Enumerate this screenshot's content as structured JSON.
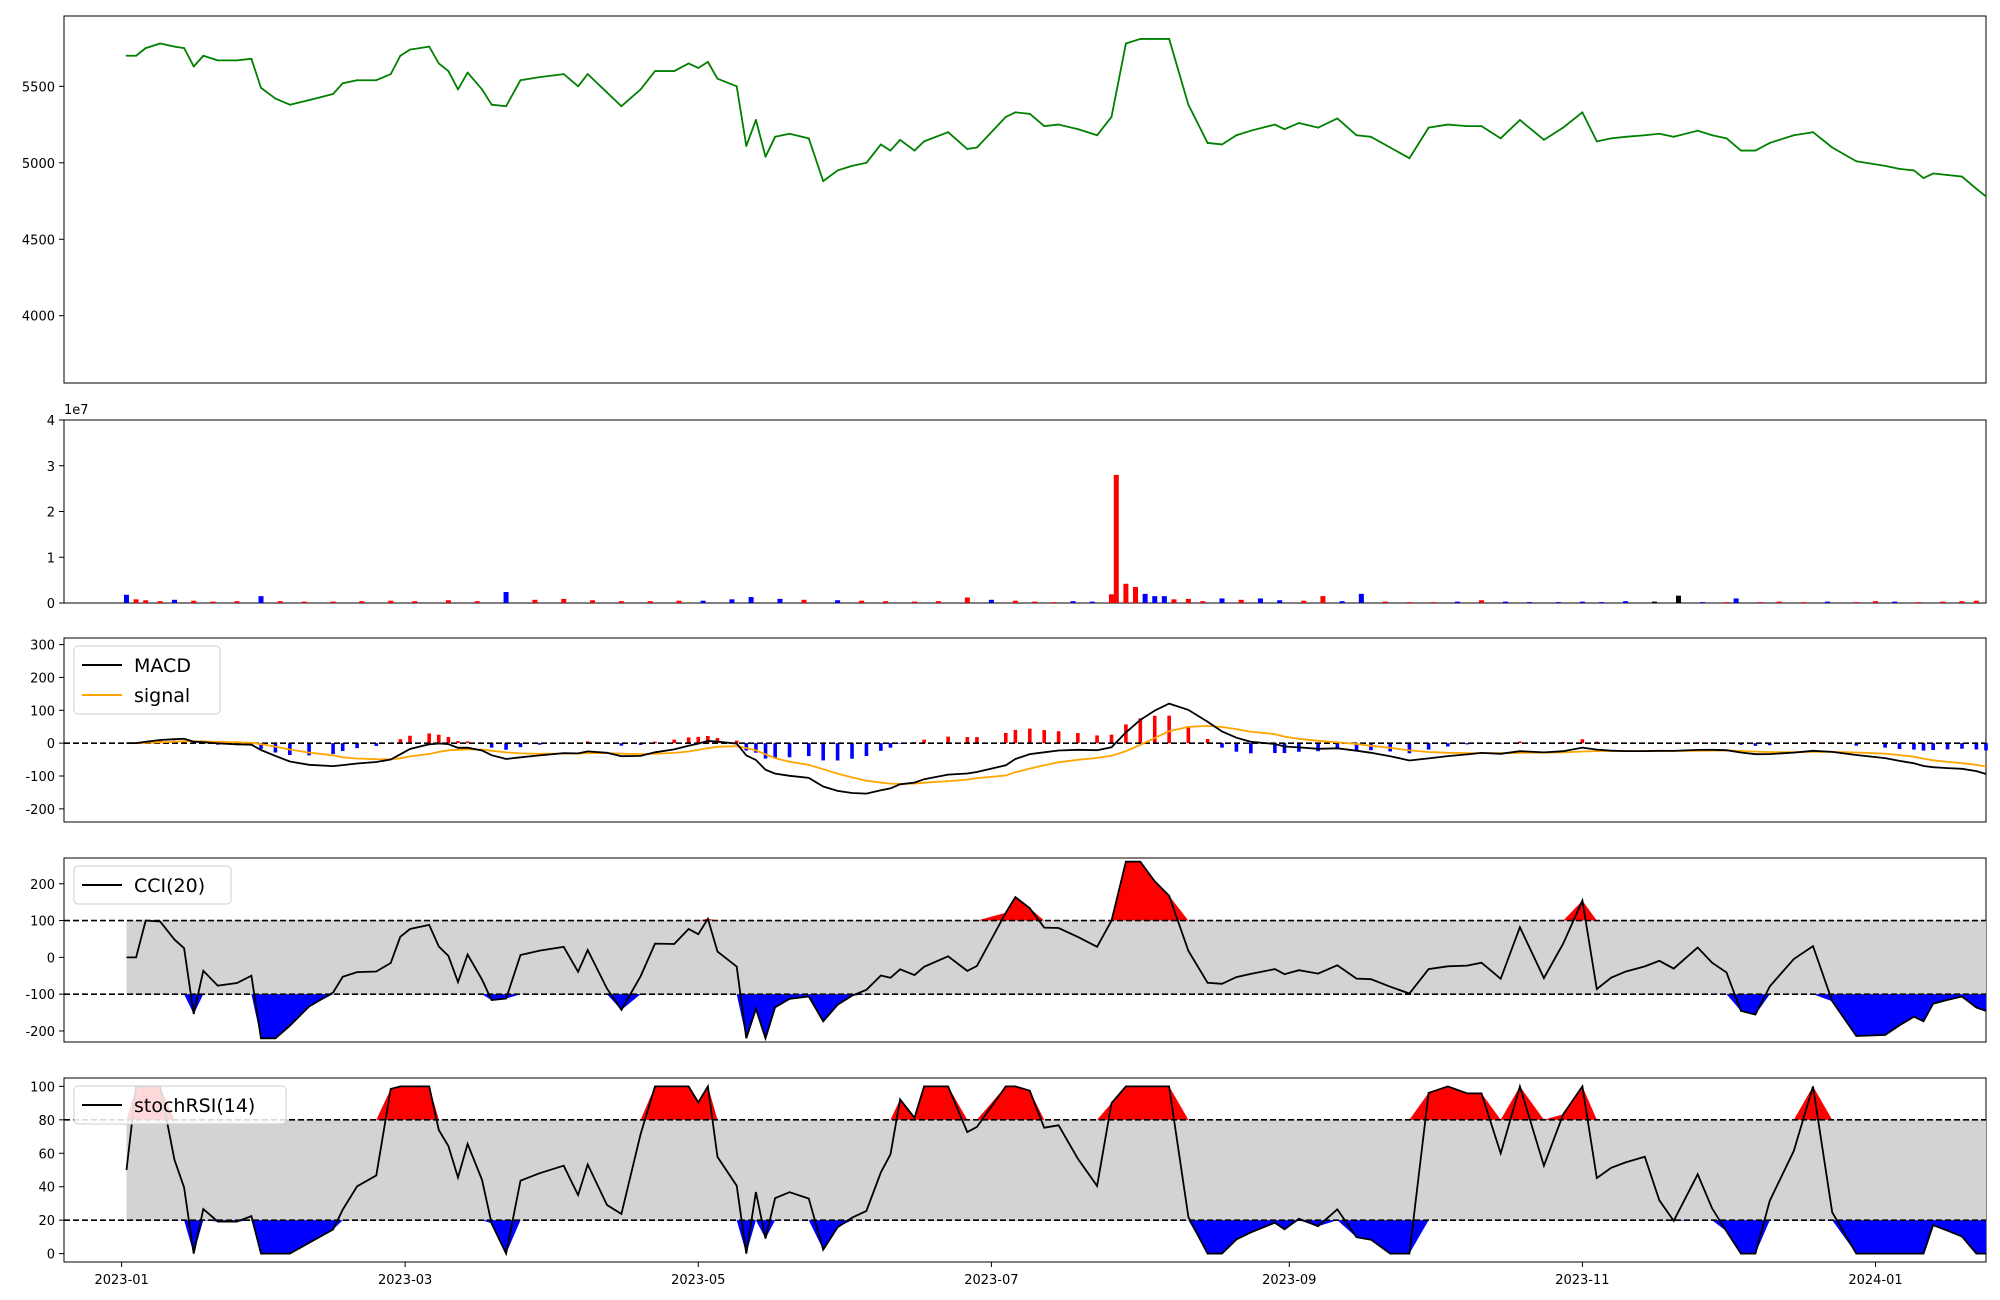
{
  "figure": {
    "panels": [
      "price",
      "volume",
      "macd",
      "cci",
      "stochrsi"
    ]
  },
  "colors": {
    "price": "#008000",
    "up": "#ff0000",
    "down": "#0000ff",
    "neutral": "#000000",
    "macd": "#000000",
    "signal": "#ffa500",
    "band": "#d3d3d3",
    "axis": "#000000"
  },
  "x_axis": {
    "date_range": [
      "2022-12-20",
      "2024-01-24"
    ],
    "ticks": [
      {
        "date": "2023-01-01",
        "label": "2023-01"
      },
      {
        "date": "2023-03-01",
        "label": "2023-03"
      },
      {
        "date": "2023-05-01",
        "label": "2023-05"
      },
      {
        "date": "2023-07-01",
        "label": "2023-07"
      },
      {
        "date": "2023-09-01",
        "label": "2023-09"
      },
      {
        "date": "2023-11-01",
        "label": "2023-11"
      },
      {
        "date": "2024-01-01",
        "label": "2024-01"
      }
    ]
  },
  "chart_data": [
    {
      "id": "price",
      "type": "line",
      "ylim": [
        3560,
        5960
      ],
      "yticks": [
        4000,
        4500,
        5000,
        5500
      ],
      "points": [
        [
          "2023-01-02",
          5700
        ],
        [
          "2023-01-04",
          5700
        ],
        [
          "2023-01-06",
          5750
        ],
        [
          "2023-01-09",
          5780
        ],
        [
          "2023-01-12",
          5760
        ],
        [
          "2023-01-14",
          5750
        ],
        [
          "2023-01-16",
          5630
        ],
        [
          "2023-01-18",
          5700
        ],
        [
          "2023-01-21",
          5670
        ],
        [
          "2023-01-25",
          5670
        ],
        [
          "2023-01-28",
          5680
        ],
        [
          "2023-01-30",
          5490
        ],
        [
          "2023-02-02",
          5420
        ],
        [
          "2023-02-05",
          5380
        ],
        [
          "2023-02-09",
          5410
        ],
        [
          "2023-02-14",
          5450
        ],
        [
          "2023-02-16",
          5520
        ],
        [
          "2023-02-19",
          5540
        ],
        [
          "2023-02-23",
          5540
        ],
        [
          "2023-02-26",
          5580
        ],
        [
          "2023-02-28",
          5700
        ],
        [
          "2023-03-02",
          5740
        ],
        [
          "2023-03-06",
          5760
        ],
        [
          "2023-03-08",
          5650
        ],
        [
          "2023-03-10",
          5600
        ],
        [
          "2023-03-12",
          5480
        ],
        [
          "2023-03-14",
          5590
        ],
        [
          "2023-03-17",
          5480
        ],
        [
          "2023-03-19",
          5380
        ],
        [
          "2023-03-22",
          5370
        ],
        [
          "2023-03-25",
          5540
        ],
        [
          "2023-03-29",
          5560
        ],
        [
          "2023-04-03",
          5580
        ],
        [
          "2023-04-06",
          5500
        ],
        [
          "2023-04-08",
          5580
        ],
        [
          "2023-04-12",
          5460
        ],
        [
          "2023-04-15",
          5370
        ],
        [
          "2023-04-19",
          5480
        ],
        [
          "2023-04-22",
          5600
        ],
        [
          "2023-04-26",
          5600
        ],
        [
          "2023-04-29",
          5650
        ],
        [
          "2023-05-01",
          5620
        ],
        [
          "2023-05-03",
          5660
        ],
        [
          "2023-05-05",
          5550
        ],
        [
          "2023-05-09",
          5500
        ],
        [
          "2023-05-11",
          5110
        ],
        [
          "2023-05-13",
          5280
        ],
        [
          "2023-05-15",
          5040
        ],
        [
          "2023-05-17",
          5170
        ],
        [
          "2023-05-20",
          5190
        ],
        [
          "2023-05-24",
          5160
        ],
        [
          "2023-05-27",
          4880
        ],
        [
          "2023-05-30",
          4950
        ],
        [
          "2023-06-02",
          4980
        ],
        [
          "2023-06-05",
          5000
        ],
        [
          "2023-06-08",
          5120
        ],
        [
          "2023-06-10",
          5080
        ],
        [
          "2023-06-12",
          5150
        ],
        [
          "2023-06-15",
          5080
        ],
        [
          "2023-06-17",
          5140
        ],
        [
          "2023-06-22",
          5200
        ],
        [
          "2023-06-26",
          5090
        ],
        [
          "2023-06-28",
          5100
        ],
        [
          "2023-07-04",
          5300
        ],
        [
          "2023-07-06",
          5330
        ],
        [
          "2023-07-09",
          5320
        ],
        [
          "2023-07-12",
          5240
        ],
        [
          "2023-07-15",
          5250
        ],
        [
          "2023-07-19",
          5220
        ],
        [
          "2023-07-23",
          5180
        ],
        [
          "2023-07-26",
          5300
        ],
        [
          "2023-07-29",
          5780
        ],
        [
          "2023-08-01",
          5810
        ],
        [
          "2023-08-04",
          5810
        ],
        [
          "2023-08-07",
          5810
        ],
        [
          "2023-08-11",
          5380
        ],
        [
          "2023-08-15",
          5130
        ],
        [
          "2023-08-18",
          5120
        ],
        [
          "2023-08-21",
          5180
        ],
        [
          "2023-08-24",
          5210
        ],
        [
          "2023-08-29",
          5250
        ],
        [
          "2023-08-31",
          5220
        ],
        [
          "2023-09-03",
          5260
        ],
        [
          "2023-09-07",
          5230
        ],
        [
          "2023-09-11",
          5290
        ],
        [
          "2023-09-15",
          5180
        ],
        [
          "2023-09-18",
          5170
        ],
        [
          "2023-09-22",
          5100
        ],
        [
          "2023-09-26",
          5030
        ],
        [
          "2023-09-30",
          5230
        ],
        [
          "2023-10-04",
          5250
        ],
        [
          "2023-10-08",
          5240
        ],
        [
          "2023-10-11",
          5240
        ],
        [
          "2023-10-15",
          5160
        ],
        [
          "2023-10-19",
          5280
        ],
        [
          "2023-10-24",
          5150
        ],
        [
          "2023-10-28",
          5230
        ],
        [
          "2023-11-01",
          5330
        ],
        [
          "2023-11-04",
          5140
        ],
        [
          "2023-11-07",
          5160
        ],
        [
          "2023-11-10",
          5170
        ],
        [
          "2023-11-14",
          5180
        ],
        [
          "2023-11-17",
          5190
        ],
        [
          "2023-11-20",
          5170
        ],
        [
          "2023-11-25",
          5210
        ],
        [
          "2023-11-28",
          5180
        ],
        [
          "2023-12-01",
          5160
        ],
        [
          "2023-12-04",
          5080
        ],
        [
          "2023-12-07",
          5080
        ],
        [
          "2023-12-10",
          5130
        ],
        [
          "2023-12-15",
          5180
        ],
        [
          "2023-12-19",
          5200
        ],
        [
          "2023-12-23",
          5100
        ],
        [
          "2023-12-28",
          5010
        ],
        [
          "2024-01-03",
          4980
        ],
        [
          "2024-01-06",
          4960
        ],
        [
          "2024-01-09",
          4950
        ],
        [
          "2024-01-11",
          4900
        ],
        [
          "2024-01-13",
          4930
        ],
        [
          "2024-01-16",
          4920
        ],
        [
          "2024-01-19",
          4910
        ],
        [
          "2024-01-22",
          4830
        ],
        [
          "2024-01-24",
          4780
        ]
      ]
    },
    {
      "id": "volume",
      "type": "bar",
      "ylim": [
        0,
        40000000
      ],
      "yticks": [
        0,
        10000000,
        20000000,
        30000000,
        40000000
      ],
      "ytick_labels": [
        "0",
        "1",
        "2",
        "3",
        "4"
      ],
      "multiplier_label": "1e7",
      "bars": [
        [
          "2023-01-02",
          1800000,
          "down"
        ],
        [
          "2023-01-04",
          800000,
          "up"
        ],
        [
          "2023-01-06",
          600000,
          "up"
        ],
        [
          "2023-01-09",
          400000,
          "up"
        ],
        [
          "2023-01-12",
          700000,
          "down"
        ],
        [
          "2023-01-16",
          500000,
          "up"
        ],
        [
          "2023-01-20",
          300000,
          "up"
        ],
        [
          "2023-01-25",
          400000,
          "up"
        ],
        [
          "2023-01-30",
          1500000,
          "down"
        ],
        [
          "2023-02-03",
          400000,
          "up"
        ],
        [
          "2023-02-08",
          300000,
          "up"
        ],
        [
          "2023-02-14",
          300000,
          "up"
        ],
        [
          "2023-02-20",
          400000,
          "up"
        ],
        [
          "2023-02-26",
          500000,
          "up"
        ],
        [
          "2023-03-03",
          400000,
          "up"
        ],
        [
          "2023-03-10",
          600000,
          "up"
        ],
        [
          "2023-03-16",
          400000,
          "up"
        ],
        [
          "2023-03-22",
          2400000,
          "down"
        ],
        [
          "2023-03-28",
          700000,
          "up"
        ],
        [
          "2023-04-03",
          900000,
          "up"
        ],
        [
          "2023-04-09",
          600000,
          "up"
        ],
        [
          "2023-04-15",
          400000,
          "up"
        ],
        [
          "2023-04-21",
          400000,
          "up"
        ],
        [
          "2023-04-27",
          500000,
          "up"
        ],
        [
          "2023-05-02",
          500000,
          "down"
        ],
        [
          "2023-05-08",
          800000,
          "down"
        ],
        [
          "2023-05-12",
          1300000,
          "down"
        ],
        [
          "2023-05-18",
          900000,
          "down"
        ],
        [
          "2023-05-23",
          700000,
          "up"
        ],
        [
          "2023-05-30",
          600000,
          "down"
        ],
        [
          "2023-06-04",
          500000,
          "up"
        ],
        [
          "2023-06-09",
          400000,
          "up"
        ],
        [
          "2023-06-15",
          300000,
          "up"
        ],
        [
          "2023-06-20",
          400000,
          "up"
        ],
        [
          "2023-06-26",
          1200000,
          "up"
        ],
        [
          "2023-07-01",
          700000,
          "down"
        ],
        [
          "2023-07-06",
          500000,
          "up"
        ],
        [
          "2023-07-10",
          300000,
          "up"
        ],
        [
          "2023-07-14",
          200000,
          "up"
        ],
        [
          "2023-07-18",
          400000,
          "down"
        ],
        [
          "2023-07-22",
          300000,
          "down"
        ],
        [
          "2023-07-26",
          1900000,
          "up"
        ],
        [
          "2023-07-27",
          28000000,
          "up"
        ],
        [
          "2023-07-29",
          4200000,
          "up"
        ],
        [
          "2023-07-31",
          3500000,
          "up"
        ],
        [
          "2023-08-02",
          2000000,
          "down"
        ],
        [
          "2023-08-04",
          1500000,
          "down"
        ],
        [
          "2023-08-06",
          1500000,
          "down"
        ],
        [
          "2023-08-08",
          800000,
          "up"
        ],
        [
          "2023-08-11",
          900000,
          "up"
        ],
        [
          "2023-08-14",
          400000,
          "up"
        ],
        [
          "2023-08-18",
          1000000,
          "down"
        ],
        [
          "2023-08-22",
          700000,
          "up"
        ],
        [
          "2023-08-26",
          1000000,
          "down"
        ],
        [
          "2023-08-30",
          600000,
          "down"
        ],
        [
          "2023-09-04",
          500000,
          "up"
        ],
        [
          "2023-09-08",
          1500000,
          "up"
        ],
        [
          "2023-09-12",
          400000,
          "down"
        ],
        [
          "2023-09-16",
          2000000,
          "down"
        ],
        [
          "2023-09-21",
          300000,
          "up"
        ],
        [
          "2023-09-26",
          200000,
          "up"
        ],
        [
          "2023-10-01",
          200000,
          "up"
        ],
        [
          "2023-10-06",
          300000,
          "down"
        ],
        [
          "2023-10-11",
          600000,
          "up"
        ],
        [
          "2023-10-16",
          300000,
          "down"
        ],
        [
          "2023-10-21",
          200000,
          "down"
        ],
        [
          "2023-10-27",
          200000,
          "down"
        ],
        [
          "2023-11-01",
          300000,
          "down"
        ],
        [
          "2023-11-05",
          200000,
          "down"
        ],
        [
          "2023-11-10",
          400000,
          "down"
        ],
        [
          "2023-11-16",
          300000,
          "neutral"
        ],
        [
          "2023-11-21",
          1600000,
          "neutral"
        ],
        [
          "2023-11-26",
          200000,
          "down"
        ],
        [
          "2023-12-01",
          200000,
          "up"
        ],
        [
          "2023-12-03",
          1000000,
          "down"
        ],
        [
          "2023-12-08",
          200000,
          "up"
        ],
        [
          "2023-12-12",
          300000,
          "up"
        ],
        [
          "2023-12-17",
          200000,
          "up"
        ],
        [
          "2023-12-22",
          300000,
          "down"
        ],
        [
          "2023-12-28",
          200000,
          "up"
        ],
        [
          "2024-01-01",
          400000,
          "up"
        ],
        [
          "2024-01-05",
          300000,
          "down"
        ],
        [
          "2024-01-10",
          200000,
          "up"
        ],
        [
          "2024-01-15",
          300000,
          "up"
        ],
        [
          "2024-01-19",
          400000,
          "up"
        ],
        [
          "2024-01-22",
          500000,
          "up"
        ]
      ]
    }
  ]
}
